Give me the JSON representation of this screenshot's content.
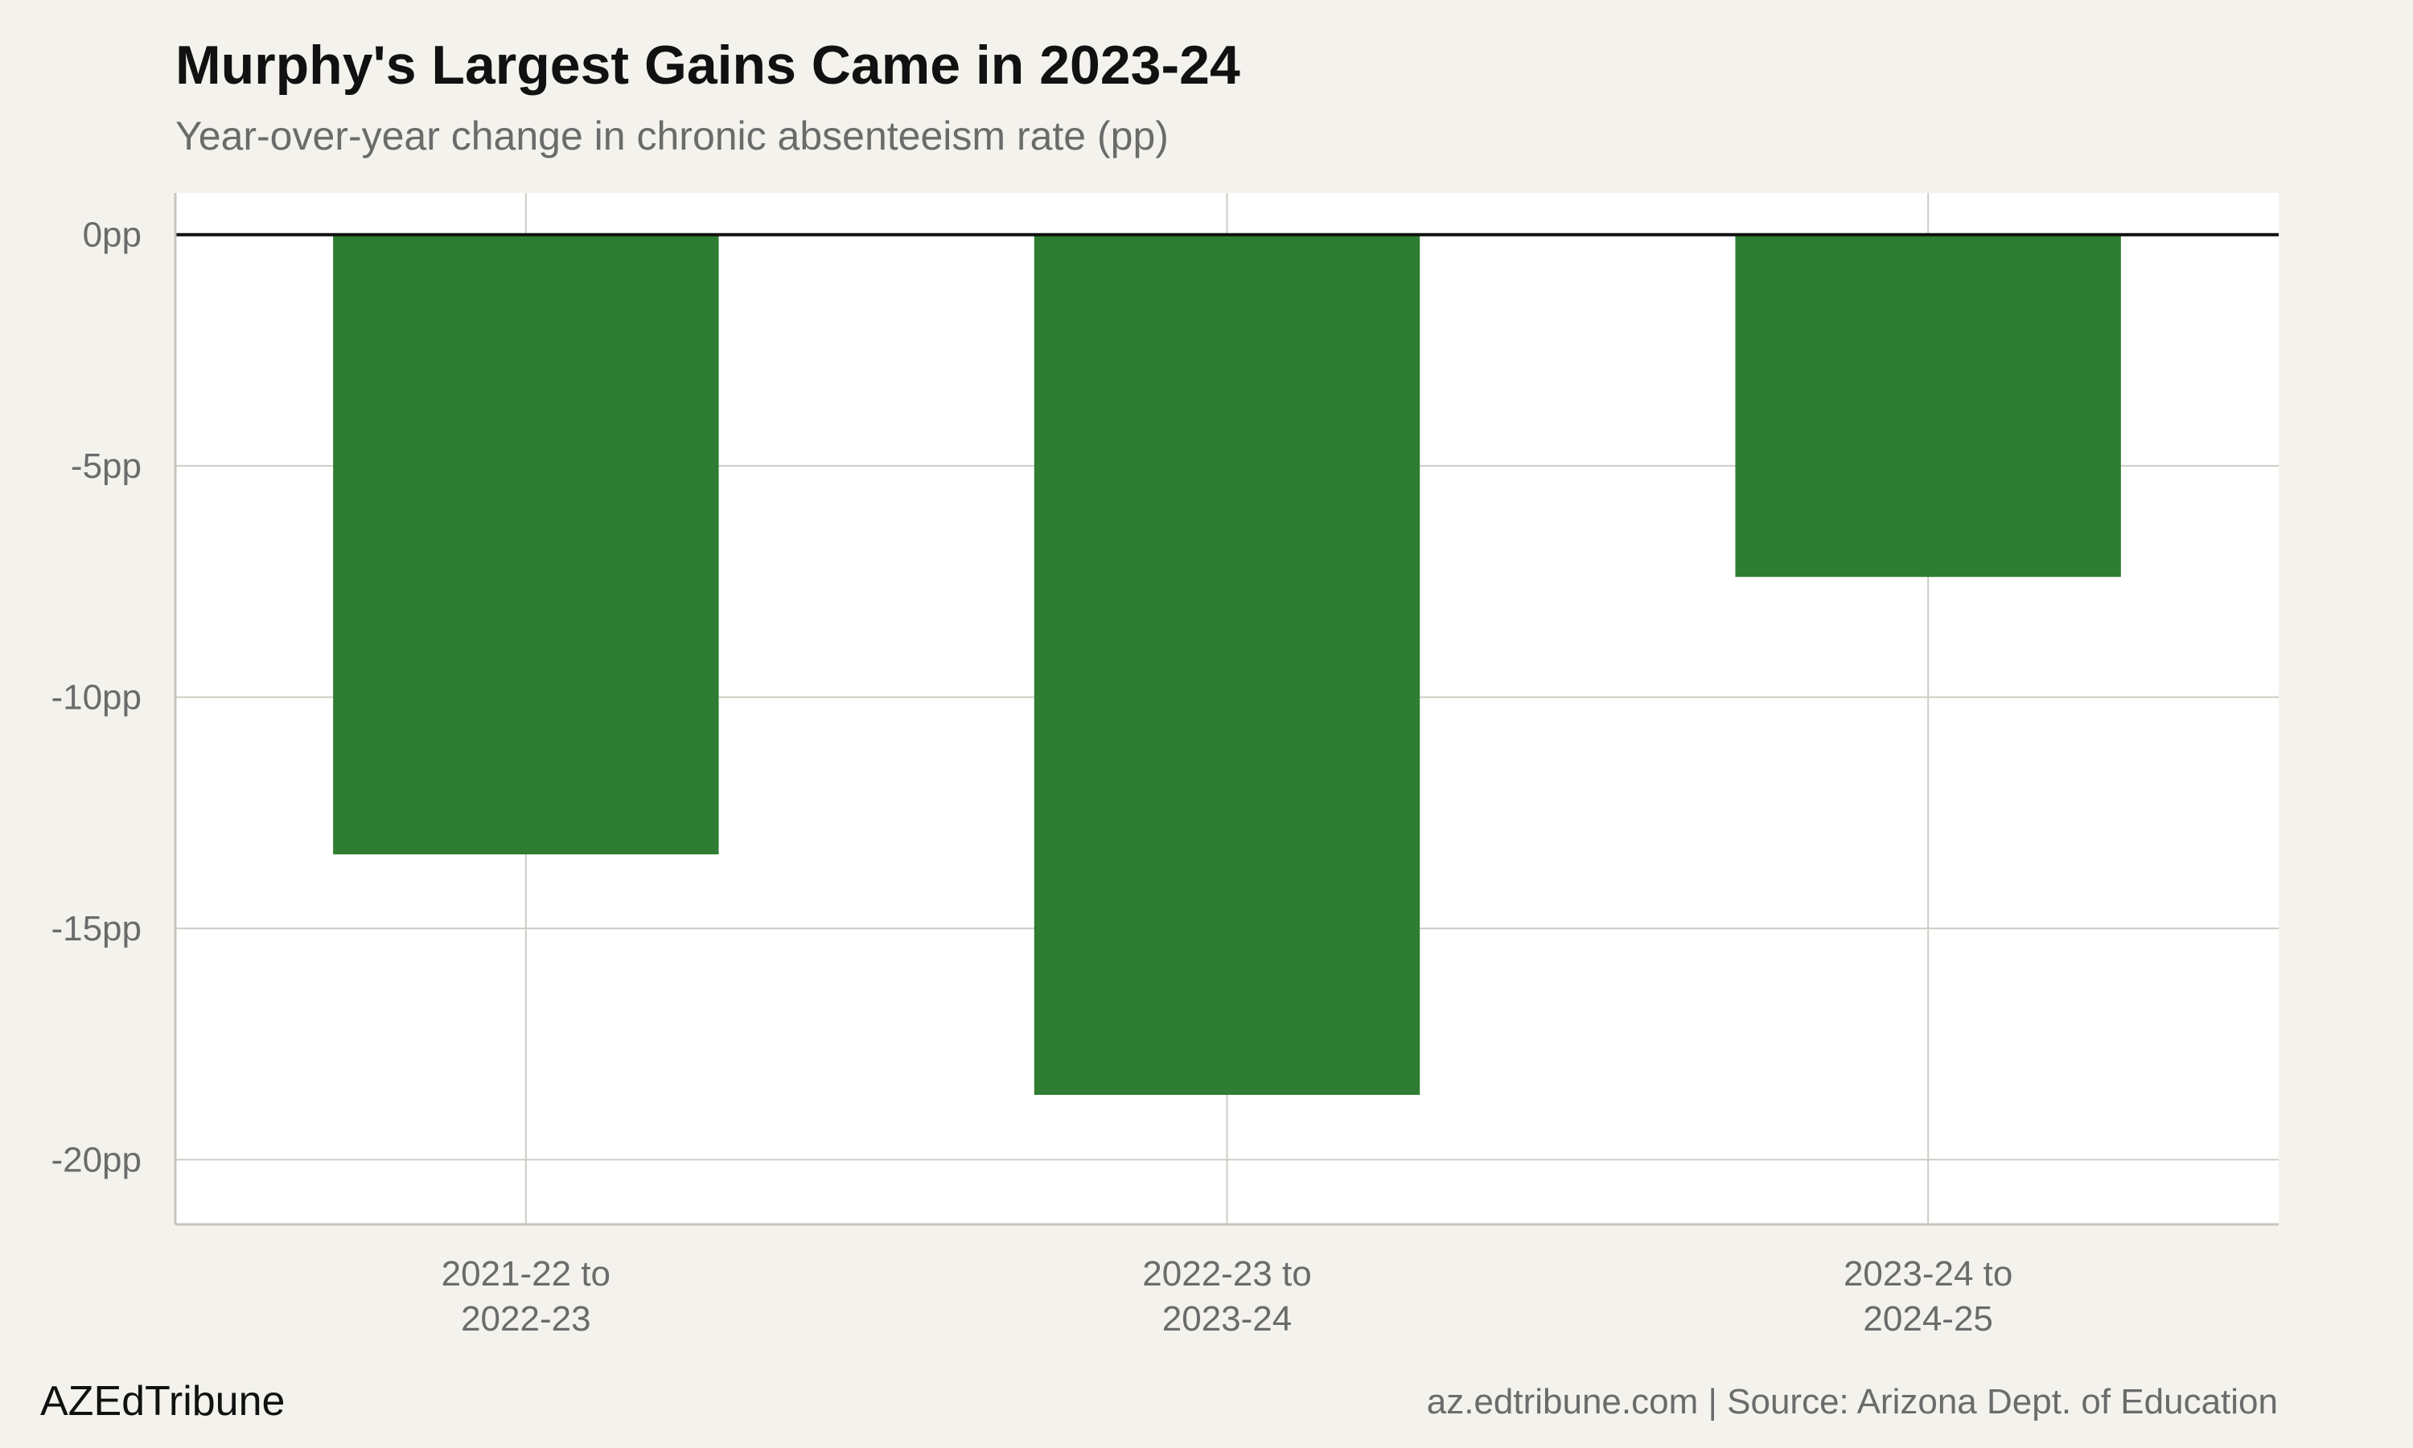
{
  "chart_data": {
    "type": "bar",
    "title": "Murphy's Largest Gains Came in 2023-24",
    "subtitle": "Year-over-year change in chronic absenteeism rate (pp)",
    "categories": [
      [
        "2021-22 to",
        "2022-23"
      ],
      [
        "2022-23 to",
        "2023-24"
      ],
      [
        "2023-24 to",
        "2024-25"
      ]
    ],
    "values": [
      -13.4,
      -18.6,
      -7.4
    ],
    "ylim": [
      -21.4,
      0.9
    ],
    "yticks": [
      0,
      -5,
      -10,
      -15,
      -20
    ],
    "ytick_labels": [
      "0pp",
      "-5pp",
      "-10pp",
      "-15pp",
      "-20pp"
    ],
    "bar_color": "#2f7d32",
    "grid": true,
    "legend": "none"
  },
  "footer": {
    "brand": "AZEdTribune",
    "source": "az.edtribune.com | Source: Arizona Dept. of Education"
  }
}
